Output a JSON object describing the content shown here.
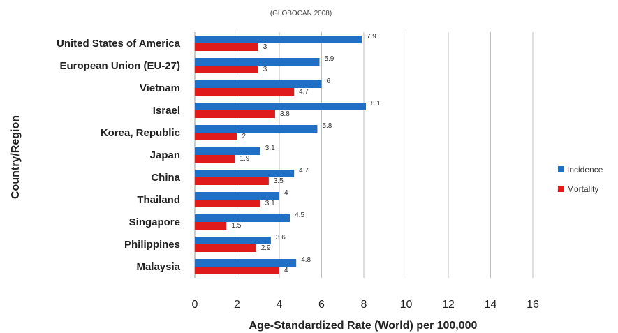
{
  "chart_data": {
    "type": "bar",
    "orientation": "horizontal",
    "subtitle": "(GLOBOCAN 2008)",
    "xlabel": "Age-Standardized Rate (World) per 100,000",
    "ylabel": "Country/Region",
    "xlim": [
      0,
      16
    ],
    "xticks": [
      0,
      2,
      4,
      6,
      8,
      10,
      12,
      14,
      16
    ],
    "grid": "vertical",
    "legend_position": "right",
    "categories": [
      "United States of America",
      "European Union (EU-27)",
      "Vietnam",
      "Israel",
      "Korea, Republic",
      "Japan",
      "China",
      "Thailand",
      "Singapore",
      "Philippines",
      "Malaysia"
    ],
    "series": [
      {
        "name": "Incidence",
        "color": "#1f6fc5",
        "values": [
          7.9,
          5.9,
          6,
          8.1,
          5.8,
          3.1,
          4.7,
          4,
          4.5,
          3.6,
          4.8
        ]
      },
      {
        "name": "Mortality",
        "color": "#e01b1b",
        "values": [
          3,
          3,
          4.7,
          3.8,
          2,
          1.9,
          3.5,
          3.1,
          1.5,
          2.9,
          4
        ]
      }
    ]
  }
}
